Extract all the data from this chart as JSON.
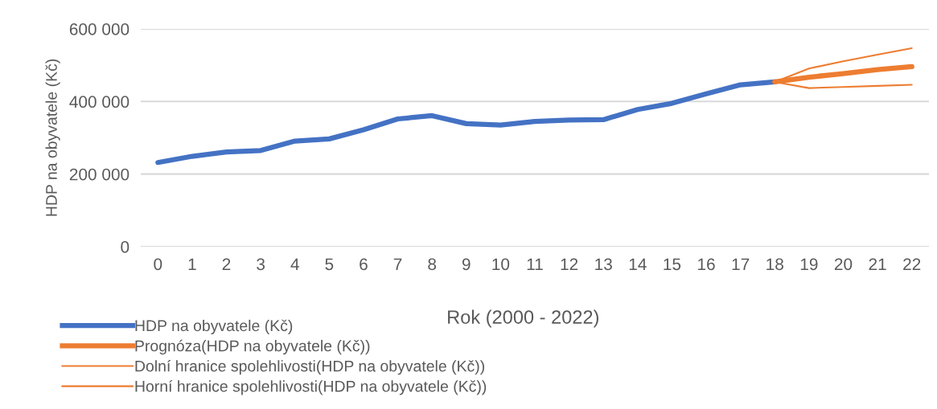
{
  "chart_data": {
    "type": "line",
    "xlabel": "Rok (2000 - 2022)",
    "ylabel": "HDP na obyvatele (Kč)",
    "categories": [
      "0",
      "1",
      "2",
      "3",
      "4",
      "5",
      "6",
      "7",
      "8",
      "9",
      "10",
      "11",
      "12",
      "13",
      "14",
      "15",
      "16",
      "17",
      "18",
      "19",
      "20",
      "21",
      "22"
    ],
    "series": [
      {
        "name": "HDP na obyvatele (Kč)",
        "color": "#4472c4",
        "values": [
          232000,
          249000,
          261000,
          265000,
          291000,
          297000,
          322000,
          352000,
          361000,
          339000,
          335000,
          345000,
          349000,
          350000,
          378000,
          395000,
          421000,
          446000,
          454000,
          null,
          null,
          null,
          null
        ]
      },
      {
        "name": "Prognóza(HDP na obyvatele (Kč))",
        "color": "#ed7d31",
        "values": [
          null,
          null,
          null,
          null,
          null,
          null,
          null,
          null,
          null,
          null,
          null,
          null,
          null,
          null,
          null,
          null,
          null,
          null,
          454000,
          467000,
          477000,
          488000,
          496000
        ]
      },
      {
        "name": "Dolní hranice spolehlivosti(HDP na obyvatele (Kč))",
        "color": "#ed7d31",
        "values": [
          null,
          null,
          null,
          null,
          null,
          null,
          null,
          null,
          null,
          null,
          null,
          null,
          null,
          null,
          null,
          null,
          null,
          null,
          454000,
          437000,
          440000,
          443000,
          446000
        ]
      },
      {
        "name": "Horní hranice spolehlivosti(HDP na obyvatele (Kč))",
        "color": "#ed7d31",
        "values": [
          null,
          null,
          null,
          null,
          null,
          null,
          null,
          null,
          null,
          null,
          null,
          null,
          null,
          null,
          null,
          null,
          null,
          null,
          454000,
          491000,
          511000,
          529000,
          547000
        ]
      }
    ],
    "ylim": [
      0,
      600000
    ],
    "yticks": [
      {
        "value": 0,
        "label": "0"
      },
      {
        "value": 200000,
        "label": "200 000"
      },
      {
        "value": 400000,
        "label": "400 000"
      },
      {
        "value": 600000,
        "label": "600 000"
      }
    ],
    "grid": "y",
    "legend": "bottom left",
    "marker": "none",
    "line_style": "solid"
  }
}
